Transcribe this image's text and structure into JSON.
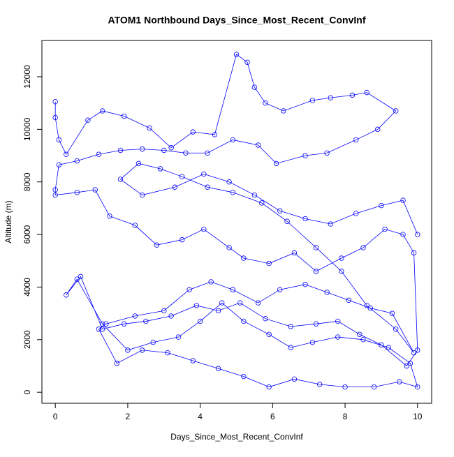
{
  "chart_data": {
    "type": "line",
    "marker": "open-circle",
    "color": "#0000ff",
    "title": "ATOM1 Northbound Days_Since_Most_Recent_ConvInf",
    "x_label": "Days_Since_Most_Recent_ConvInf",
    "y_label": "Altitude (m)",
    "xlim": [
      -0.37,
      10.39
    ],
    "ylim": [
      -420,
      13380
    ],
    "xticks": [
      0,
      2,
      4,
      6,
      8,
      10
    ],
    "yticks": [
      0,
      2000,
      4000,
      6000,
      8000,
      10000,
      12000
    ],
    "x": [
      0,
      0,
      0.1,
      0.3,
      0.9,
      1.3,
      1.9,
      2.6,
      3.2,
      3.8,
      4.4,
      5.0,
      5.3,
      5.5,
      5.8,
      6.3,
      7.1,
      7.6,
      8.2,
      8.6,
      9.4,
      8.9,
      8.3,
      7.5,
      6.9,
      6.1,
      5.6,
      4.9,
      4.2,
      3.6,
      3.0,
      2.4,
      1.8,
      1.2,
      0.6,
      0.1,
      0.0,
      0.0,
      0.6,
      1.1,
      1.5,
      2.2,
      2.8,
      3.5,
      4.1,
      4.8,
      5.2,
      5.9,
      6.6,
      7.2,
      7.9,
      8.5,
      9.1,
      9.6,
      9.9,
      10.0,
      9.7,
      9.0,
      8.4,
      7.8,
      7.2,
      6.5,
      5.8,
      5.1,
      4.5,
      3.9,
      3.2,
      2.5,
      1.9,
      1.3,
      0.7,
      0.3,
      0.6,
      1.3,
      2.0,
      2.7,
      3.4,
      4.0,
      4.6,
      5.2,
      5.9,
      6.5,
      7.1,
      7.8,
      8.5,
      9.2,
      9.8,
      10.0,
      9.5,
      8.8,
      8.0,
      7.3,
      6.6,
      5.9,
      5.2,
      4.5,
      3.8,
      3.1,
      2.4,
      1.7,
      1.2,
      1.4,
      2.2,
      3.0,
      3.7,
      4.3,
      4.9,
      5.6,
      6.2,
      6.9,
      7.5,
      8.1,
      8.7,
      9.3,
      9.9,
      9.4,
      8.6,
      7.9,
      7.2,
      6.4,
      5.7,
      4.9,
      4.2,
      3.5,
      2.9,
      2.3,
      1.8,
      2.4,
      3.3,
      4.1,
      4.8,
      5.5,
      6.2,
      6.9,
      7.6,
      8.3,
      9.0,
      9.6,
      10.0
    ],
    "y": [
      11050,
      10450,
      9600,
      9050,
      10350,
      10700,
      10500,
      10050,
      9300,
      9900,
      9800,
      12850,
      12550,
      11600,
      11000,
      10700,
      11100,
      11200,
      11300,
      11400,
      10700,
      10000,
      9600,
      9100,
      9000,
      8700,
      9400,
      9600,
      9100,
      9100,
      9200,
      9250,
      9200,
      9050,
      8800,
      8650,
      7700,
      7500,
      7600,
      7700,
      6700,
      6350,
      5600,
      5800,
      6200,
      5500,
      5100,
      4900,
      5300,
      4600,
      5100,
      5500,
      6200,
      6000,
      5300,
      1600,
      1000,
      1800,
      2200,
      2700,
      2600,
      2500,
      2800,
      3400,
      3100,
      3300,
      2900,
      2700,
      2600,
      2400,
      4400,
      3700,
      4300,
      2600,
      1600,
      1900,
      2100,
      2700,
      3400,
      2700,
      2200,
      1700,
      1900,
      2100,
      2000,
      1700,
      1100,
      200,
      400,
      200,
      200,
      300,
      500,
      200,
      600,
      900,
      1200,
      1500,
      1600,
      1100,
      2400,
      2600,
      2900,
      3100,
      3900,
      4200,
      3900,
      3400,
      3900,
      4100,
      3800,
      3500,
      3200,
      3000,
      1500,
      2400,
      3300,
      4600,
      5500,
      6500,
      7200,
      7600,
      7800,
      8200,
      8500,
      8700,
      8100,
      7500,
      7800,
      8300,
      8000,
      7500,
      6900,
      6600,
      6400,
      6800,
      7100,
      7300,
      6000
    ]
  }
}
